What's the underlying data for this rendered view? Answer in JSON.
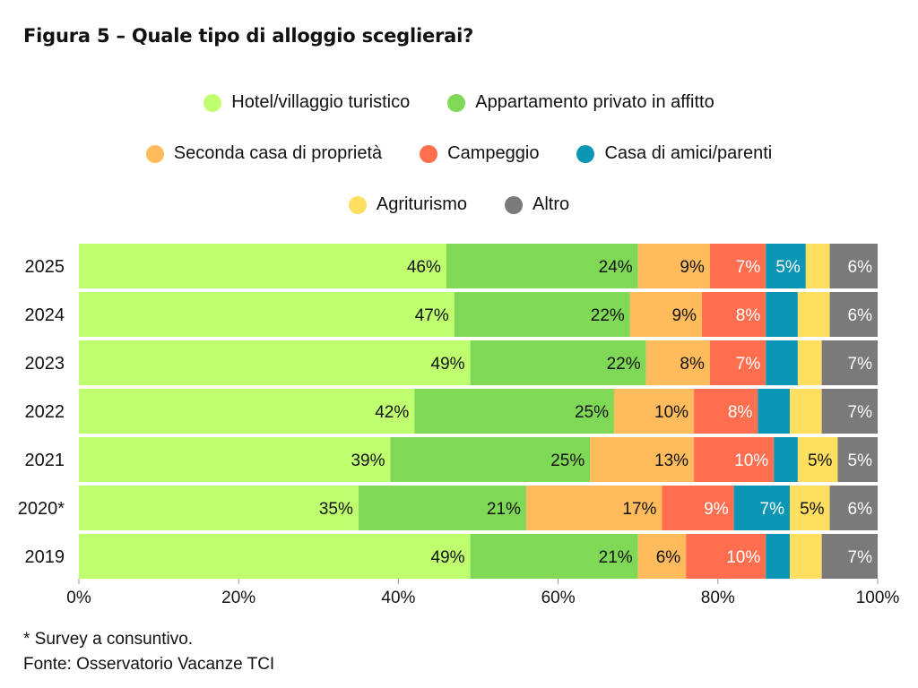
{
  "title": "Figura 5 – Quale tipo di alloggio sceglierai?",
  "footnotes": {
    "note": "* Survey a consuntivo.",
    "source": "Fonte: Osservatorio Vacanze TCI"
  },
  "chart_data": {
    "type": "bar",
    "orientation": "horizontal",
    "stacked": true,
    "categories": [
      "2025",
      "2024",
      "2023",
      "2022",
      "2021",
      "2020*",
      "2019"
    ],
    "series": [
      {
        "name": "Hotel/villaggio turistico",
        "color": "#bfff6f",
        "values": [
          46,
          47,
          49,
          42,
          39,
          35,
          49
        ],
        "labels": [
          "46%",
          "47%",
          "49%",
          "42%",
          "39%",
          "35%",
          "49%"
        ]
      },
      {
        "name": "Appartamento privato in affitto",
        "color": "#7fd957",
        "values": [
          24,
          22,
          22,
          25,
          25,
          21,
          21
        ],
        "labels": [
          "24%",
          "22%",
          "22%",
          "25%",
          "25%",
          "21%",
          "21%"
        ]
      },
      {
        "name": "Seconda casa di proprietà",
        "color": "#ffbb5c",
        "values": [
          9,
          9,
          8,
          10,
          13,
          17,
          6
        ],
        "labels": [
          "9%",
          "9%",
          "8%",
          "10%",
          "13%",
          "17%",
          "6%"
        ]
      },
      {
        "name": "Campeggio",
        "color": "#ff6f4f",
        "values": [
          7,
          8,
          7,
          8,
          10,
          9,
          10
        ],
        "labels": [
          "7%",
          "8%",
          "7%",
          "8%",
          "10%",
          "9%",
          "10%"
        ]
      },
      {
        "name": "Casa di amici/parenti",
        "color": "#0a96b4",
        "values": [
          5,
          4,
          4,
          4,
          3,
          7,
          3
        ],
        "labels": [
          "5%",
          "",
          "",
          "",
          "",
          "7%",
          ""
        ]
      },
      {
        "name": "Agriturismo",
        "color": "#ffdf5f",
        "values": [
          3,
          4,
          3,
          4,
          5,
          5,
          4
        ],
        "labels": [
          "",
          "",
          "",
          "",
          "5%",
          "5%",
          ""
        ]
      },
      {
        "name": "Altro",
        "color": "#7a7a7a",
        "values": [
          6,
          6,
          7,
          7,
          5,
          6,
          7
        ],
        "labels": [
          "6%",
          "6%",
          "7%",
          "7%",
          "5%",
          "6%",
          "7%"
        ]
      }
    ],
    "xlim": [
      0,
      100
    ],
    "xticks": [
      "0%",
      "20%",
      "40%",
      "60%",
      "80%",
      "100%"
    ],
    "legend_rows": [
      [
        "Hotel/villaggio turistico",
        "Appartamento privato in affitto"
      ],
      [
        "Seconda casa di proprietà",
        "Campeggio",
        "Casa di amici/parenti"
      ],
      [
        "Agriturismo",
        "Altro"
      ]
    ],
    "legend_position": "top",
    "grid": false
  }
}
